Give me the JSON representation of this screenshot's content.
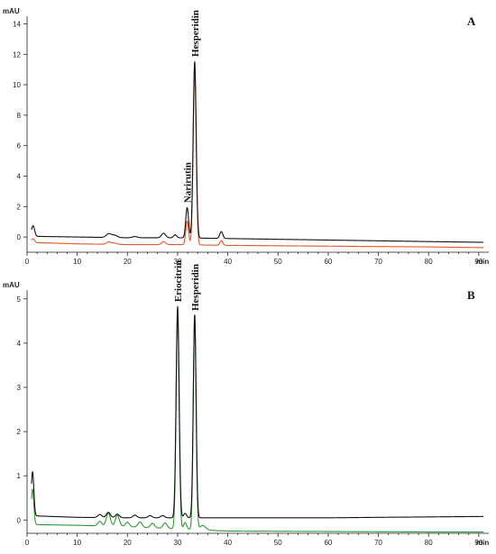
{
  "chart_data": [
    {
      "type": "line",
      "panel_label": "A",
      "ylabel": "mAU",
      "xlabel": "min",
      "xlim": [
        0,
        92
      ],
      "ylim": [
        -1,
        14.5
      ],
      "xticks": [
        0,
        10,
        20,
        30,
        40,
        50,
        60,
        70,
        80,
        90
      ],
      "yticks": [
        0,
        2,
        4,
        6,
        8,
        10,
        12,
        14
      ],
      "grid": false,
      "annotations": [
        {
          "text": "Narirutin",
          "x": 31.9,
          "y": 2.0
        },
        {
          "text": "Hesperidin",
          "x": 33.4,
          "y": 11.6
        }
      ],
      "series": [
        {
          "color": "#111111",
          "baseline": [
            [
              0,
              0.05
            ],
            [
              10,
              0.0
            ],
            [
              20,
              -0.05
            ],
            [
              30,
              -0.05
            ],
            [
              40,
              -0.1
            ],
            [
              60,
              -0.2
            ],
            [
              80,
              -0.3
            ],
            [
              91,
              -0.35
            ]
          ],
          "peaks": [
            {
              "x": 1.2,
              "h": 0.7,
              "w": 0.3
            },
            {
              "x": 16.3,
              "h": 0.25,
              "w": 0.5
            },
            {
              "x": 17.5,
              "h": 0.15,
              "w": 0.5
            },
            {
              "x": 21.5,
              "h": 0.08,
              "w": 0.5
            },
            {
              "x": 27.2,
              "h": 0.3,
              "w": 0.4
            },
            {
              "x": 29.5,
              "h": 0.2,
              "w": 0.3
            },
            {
              "x": 31.9,
              "h": 2.0,
              "w": 0.28
            },
            {
              "x": 33.4,
              "h": 11.6,
              "w": 0.3
            },
            {
              "x": 38.7,
              "h": 0.45,
              "w": 0.3
            }
          ]
        },
        {
          "color": "#e05a2a",
          "baseline": [
            [
              0,
              -0.35
            ],
            [
              10,
              -0.45
            ],
            [
              20,
              -0.5
            ],
            [
              30,
              -0.5
            ],
            [
              40,
              -0.55
            ],
            [
              60,
              -0.6
            ],
            [
              80,
              -0.65
            ],
            [
              91,
              -0.7
            ]
          ],
          "peaks": [
            {
              "x": 1.2,
              "h": 0.25,
              "w": 0.3
            },
            {
              "x": 16.3,
              "h": 0.15,
              "w": 0.5
            },
            {
              "x": 17.5,
              "h": 0.08,
              "w": 0.5
            },
            {
              "x": 27.2,
              "h": 0.2,
              "w": 0.4
            },
            {
              "x": 31.9,
              "h": 1.55,
              "w": 0.28
            },
            {
              "x": 33.4,
              "h": 11.3,
              "w": 0.3
            },
            {
              "x": 38.7,
              "h": 0.3,
              "w": 0.3
            }
          ]
        }
      ]
    },
    {
      "type": "line",
      "panel_label": "B",
      "ylabel": "mAU",
      "xlabel": "min",
      "xlim": [
        0,
        92
      ],
      "ylim": [
        -0.3,
        5.2
      ],
      "xticks": [
        0,
        10,
        20,
        30,
        40,
        50,
        60,
        70,
        80,
        90
      ],
      "yticks": [
        0,
        1,
        2,
        3,
        4,
        5
      ],
      "grid": false,
      "annotations": [
        {
          "text": "Eriocitrin",
          "x": 30.0,
          "y": 4.85
        },
        {
          "text": "Hesperidin",
          "x": 33.4,
          "y": 4.65
        }
      ],
      "series": [
        {
          "color": "#111111",
          "baseline": [
            [
              0,
              0.1
            ],
            [
              10,
              0.06
            ],
            [
              20,
              0.05
            ],
            [
              30,
              0.05
            ],
            [
              40,
              0.05
            ],
            [
              60,
              0.05
            ],
            [
              80,
              0.07
            ],
            [
              91,
              0.08
            ]
          ],
          "peaks": [
            {
              "x": 1.1,
              "h": 1.0,
              "w": 0.25
            },
            {
              "x": 14.5,
              "h": 0.07,
              "w": 0.4
            },
            {
              "x": 16.2,
              "h": 0.12,
              "w": 0.4
            },
            {
              "x": 18.0,
              "h": 0.08,
              "w": 0.4
            },
            {
              "x": 21.5,
              "h": 0.06,
              "w": 0.4
            },
            {
              "x": 24.5,
              "h": 0.05,
              "w": 0.4
            },
            {
              "x": 27.0,
              "h": 0.05,
              "w": 0.4
            },
            {
              "x": 30.0,
              "h": 4.78,
              "w": 0.3
            },
            {
              "x": 31.5,
              "h": 0.1,
              "w": 0.3
            },
            {
              "x": 33.4,
              "h": 4.6,
              "w": 0.28
            }
          ]
        },
        {
          "color": "#2e9a2e",
          "baseline": [
            [
              0,
              -0.1
            ],
            [
              10,
              -0.12
            ],
            [
              20,
              -0.15
            ],
            [
              30,
              -0.2
            ],
            [
              40,
              -0.25
            ],
            [
              60,
              -0.26
            ],
            [
              80,
              -0.27
            ],
            [
              91,
              -0.27
            ]
          ],
          "peaks": [
            {
              "x": 1.1,
              "h": 0.8,
              "w": 0.25
            },
            {
              "x": 14.5,
              "h": 0.1,
              "w": 0.4
            },
            {
              "x": 16.2,
              "h": 0.3,
              "w": 0.4
            },
            {
              "x": 18.0,
              "h": 0.25,
              "w": 0.4
            },
            {
              "x": 20.0,
              "h": 0.1,
              "w": 0.4
            },
            {
              "x": 22.5,
              "h": 0.12,
              "w": 0.4
            },
            {
              "x": 25.0,
              "h": 0.1,
              "w": 0.4
            },
            {
              "x": 27.5,
              "h": 0.12,
              "w": 0.4
            },
            {
              "x": 30.0,
              "h": 4.85,
              "w": 0.3
            },
            {
              "x": 31.5,
              "h": 0.15,
              "w": 0.3
            },
            {
              "x": 33.4,
              "h": 4.75,
              "w": 0.28
            },
            {
              "x": 35.0,
              "h": 0.1,
              "w": 0.6
            }
          ]
        }
      ]
    }
  ]
}
